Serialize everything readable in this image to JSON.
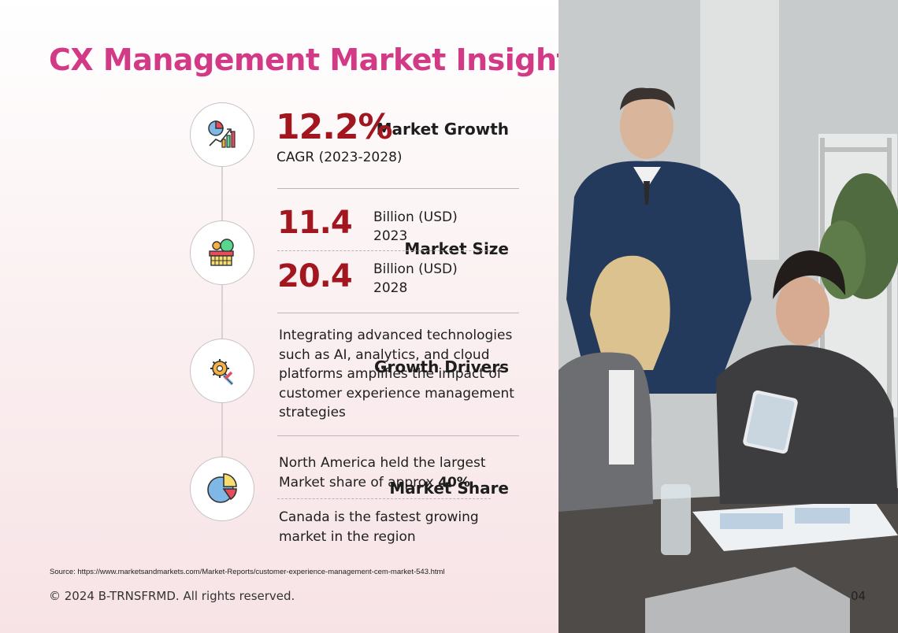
{
  "title": "CX Management Market Insights",
  "rows": {
    "growth": {
      "label": "Market Growth",
      "icon": "growth-chart-icon",
      "value": "12.2%",
      "caption": "CAGR (2023-2028)"
    },
    "size": {
      "label": "Market Size",
      "icon": "market-basket-icon",
      "entries": [
        {
          "value": "11.4",
          "unit": "Billion (USD)",
          "year": "2023"
        },
        {
          "value": "20.4",
          "unit": "Billion (USD)",
          "year": "2028"
        }
      ]
    },
    "drivers": {
      "label": "Growth Drivers",
      "icon": "gear-tools-icon",
      "text": "Integrating advanced technologies such as AI, analytics, and cloud platforms amplifies the impact of customer experience management strategies"
    },
    "share": {
      "label": "Market Share",
      "icon": "pie-chart-icon",
      "text1_prefix": "North America held the largest Market share of approx",
      "text1_value": "40%",
      "text2": "Canada is the fastest growing market in the region"
    }
  },
  "source": "Source: https://www.marketsandmarkets.com/Market-Reports/customer-experience-management-cem-market-543.html",
  "copyright": "© 2024 B-TRNSFRMD. All rights reserved.",
  "page_number": "04",
  "colors": {
    "title": "#d33a86",
    "value": "#a1161f",
    "text": "#1e1e1e"
  }
}
